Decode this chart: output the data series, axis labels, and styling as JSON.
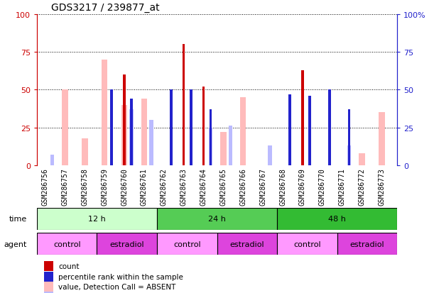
{
  "title": "GDS3217 / 239877_at",
  "samples": [
    "GSM286756",
    "GSM286757",
    "GSM286758",
    "GSM286759",
    "GSM286760",
    "GSM286761",
    "GSM286762",
    "GSM286763",
    "GSM286764",
    "GSM286765",
    "GSM286766",
    "GSM286767",
    "GSM286768",
    "GSM286769",
    "GSM286770",
    "GSM286771",
    "GSM286772",
    "GSM286773"
  ],
  "count_values": [
    0,
    0,
    0,
    0,
    60,
    0,
    0,
    80,
    52,
    0,
    0,
    0,
    0,
    63,
    0,
    0,
    0,
    0
  ],
  "percentile_values": [
    0,
    0,
    0,
    50,
    44,
    0,
    50,
    50,
    37,
    0,
    0,
    0,
    47,
    46,
    50,
    37,
    0,
    0
  ],
  "value_absent": [
    0,
    50,
    18,
    70,
    40,
    44,
    0,
    0,
    0,
    22,
    45,
    0,
    0,
    0,
    0,
    0,
    8,
    35
  ],
  "rank_absent": [
    7,
    0,
    0,
    0,
    37,
    30,
    0,
    0,
    25,
    26,
    0,
    13,
    0,
    0,
    0,
    13,
    0,
    0
  ],
  "count_color": "#cc0000",
  "percentile_color": "#2222cc",
  "value_absent_color": "#ffbbbb",
  "rank_absent_color": "#bbbbff",
  "ylim": [
    0,
    100
  ],
  "yticks": [
    0,
    25,
    50,
    75,
    100
  ],
  "time_groups": [
    {
      "label": "12 h",
      "start": 0,
      "end": 5,
      "color": "#ccffcc"
    },
    {
      "label": "24 h",
      "start": 6,
      "end": 11,
      "color": "#44cc44"
    },
    {
      "label": "48 h",
      "start": 12,
      "end": 17,
      "color": "#44cc44"
    }
  ],
  "time_colors": [
    "#ccffcc",
    "#55cc55",
    "#33bb33"
  ],
  "agent_groups": [
    {
      "label": "control",
      "start": 0,
      "end": 2,
      "color": "#ff99ff"
    },
    {
      "label": "estradiol",
      "start": 3,
      "end": 5,
      "color": "#dd44dd"
    },
    {
      "label": "control",
      "start": 6,
      "end": 8,
      "color": "#ff99ff"
    },
    {
      "label": "estradiol",
      "start": 9,
      "end": 11,
      "color": "#dd44dd"
    },
    {
      "label": "control",
      "start": 12,
      "end": 14,
      "color": "#ff99ff"
    },
    {
      "label": "estradiol",
      "start": 15,
      "end": 17,
      "color": "#dd44dd"
    }
  ],
  "legend_items": [
    {
      "label": "count",
      "color": "#cc0000"
    },
    {
      "label": "percentile rank within the sample",
      "color": "#2222cc"
    },
    {
      "label": "value, Detection Call = ABSENT",
      "color": "#ffbbbb"
    },
    {
      "label": "rank, Detection Call = ABSENT",
      "color": "#bbbbff"
    }
  ],
  "bg_color": "#ffffff",
  "axis_left_color": "#cc0000",
  "axis_right_color": "#2222cc",
  "xtick_bg_color": "#cccccc",
  "title_fontsize": 10,
  "tick_fontsize": 7,
  "annot_fontsize": 8
}
